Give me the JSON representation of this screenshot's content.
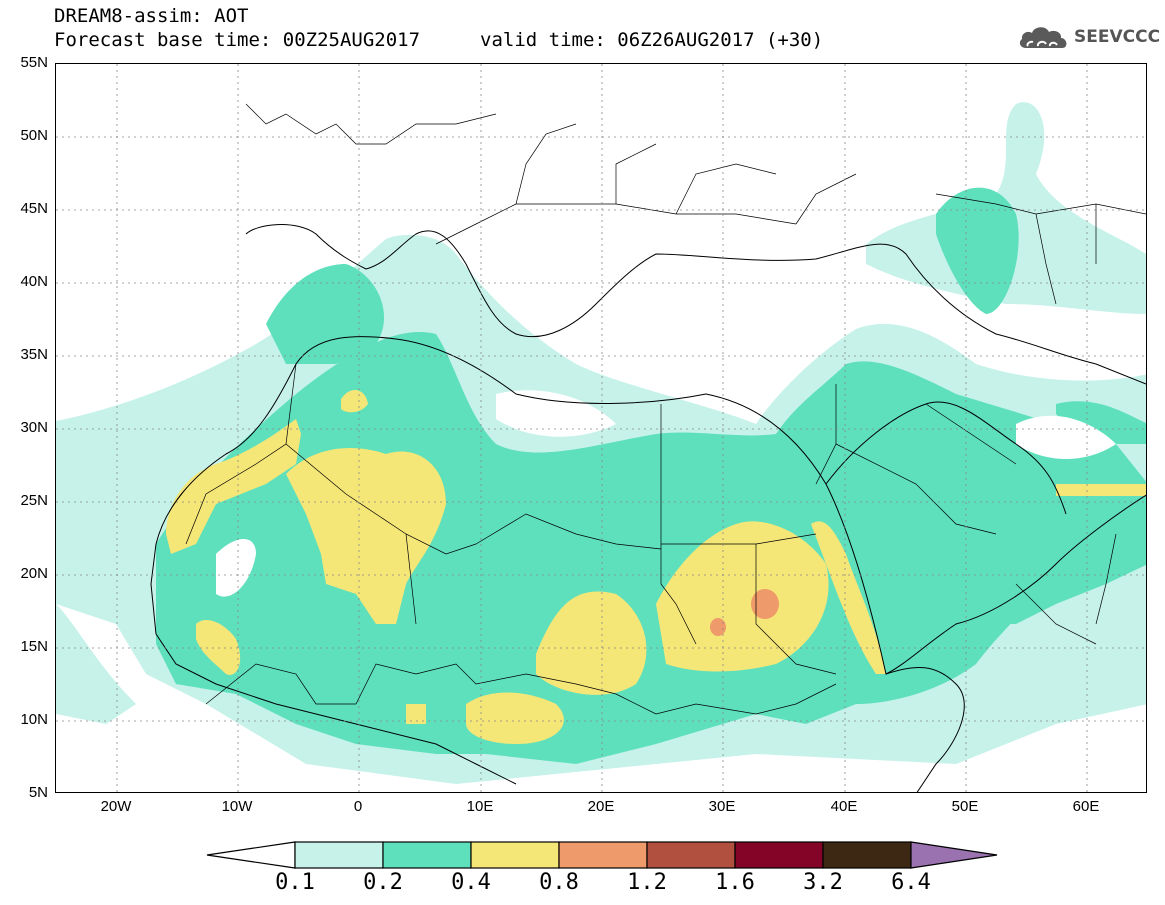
{
  "header": {
    "title_line1": "DREAM8-assim: AOT",
    "title_line2": "Forecast base time: 00Z25AUG2017",
    "valid_time": "valid time: 06Z26AUG2017 (+30)",
    "logo_text": "SEEVCCC",
    "logo_icon": "cloud-icon"
  },
  "axes": {
    "lat_labels": [
      "55N",
      "50N",
      "45N",
      "40N",
      "35N",
      "30N",
      "25N",
      "20N",
      "15N",
      "10N",
      "5N"
    ],
    "lon_labels": [
      "20W",
      "10W",
      "0",
      "10E",
      "20E",
      "30E",
      "40E",
      "50E",
      "60E"
    ]
  },
  "colorbar": {
    "labels": [
      "0.1",
      "0.2",
      "0.4",
      "0.8",
      "1.2",
      "1.6",
      "3.2",
      "6.4"
    ],
    "colors": [
      "#c6f2ea",
      "#5ee0bd",
      "#f5e678",
      "#ee9a6a",
      "#b2503f",
      "#830426",
      "#3d2814",
      "#9a72b0"
    ]
  },
  "map_colors": {
    "level_0_1": "#c6f2ea",
    "level_0_2": "#5ee0bd",
    "level_0_4": "#f5e678",
    "level_0_8": "#ee9a6a"
  }
}
